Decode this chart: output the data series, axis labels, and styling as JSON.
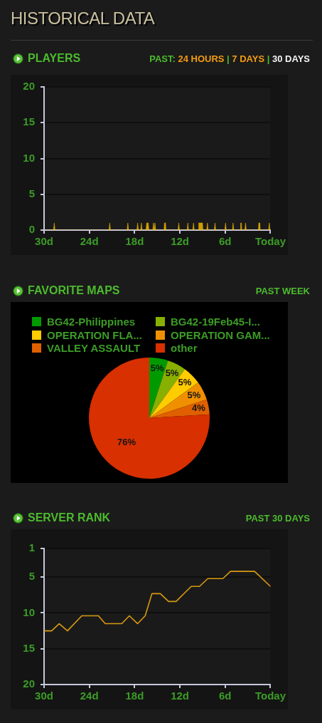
{
  "chart_data": [
    {
      "type": "other",
      "title": "HISTORICAL DATA"
    },
    {
      "type": "area",
      "title": "PLAYERS",
      "subtitle": "PAST: 24 HOURS | 7 DAYS | 30 DAYS",
      "x": [
        -30,
        -28.75,
        -28.65,
        -28.55,
        -21.4,
        -21.3,
        -21.2,
        -19,
        -18.9,
        -18.8,
        -17.7,
        -17.6,
        -17.5,
        -17.2,
        -17.1,
        -17,
        -16.5,
        -16.4,
        -16.2,
        -16.1,
        -15.6,
        -15.5,
        -15.4,
        -15.3,
        -15.2,
        -14.1,
        -14.05,
        -13.9,
        -13.85,
        -12.25,
        -12.15,
        -12.05,
        -11.05,
        -10.95,
        -10.85,
        -10.3,
        -10.2,
        -10.1,
        -9.55,
        -9.5,
        -9,
        -8.95,
        -8.45,
        -8.35,
        -8.25,
        -7.45,
        -7.35,
        -7.25,
        -6.05,
        -5.95,
        -5.85,
        -5.05,
        -4.95,
        -4.85,
        -4,
        -3.95,
        -3.85,
        -3.8,
        -3.4,
        -3.3,
        -3.2,
        -1.6,
        -1.55,
        -1.4,
        -1.35,
        -0.25,
        -0.15,
        -0.05,
        0
      ],
      "values": [
        0,
        0,
        1,
        0,
        0,
        1,
        0,
        0,
        1,
        0,
        0,
        1,
        0,
        0,
        1,
        0,
        0,
        1,
        1,
        0,
        0,
        1,
        0,
        1,
        0,
        0,
        1,
        1,
        0,
        0,
        1,
        0,
        0,
        1,
        0,
        0,
        1,
        0,
        0,
        1,
        1,
        0,
        0,
        1,
        0,
        0,
        1,
        0,
        0,
        1,
        0,
        0,
        1,
        0,
        0,
        1,
        1,
        0,
        0,
        1,
        0,
        0,
        1,
        1,
        0,
        0,
        1,
        0,
        0
      ],
      "color": "#f0b400",
      "xlim": [
        -30,
        0
      ],
      "xticks": [
        {
          "value": -30,
          "label": "30d"
        },
        {
          "value": -24,
          "label": "24d"
        },
        {
          "value": -18,
          "label": "18d"
        },
        {
          "value": -12,
          "label": "12d"
        },
        {
          "value": -6,
          "label": "6d"
        },
        {
          "value": 0,
          "label": "Today"
        }
      ],
      "ylim": [
        0,
        20
      ],
      "yticks": [
        0,
        5,
        10,
        15,
        20
      ],
      "grid": "y",
      "marker": "none"
    },
    {
      "type": "pie",
      "title": "FAVORITE MAPS",
      "subtitle": "PAST WEEK",
      "categories": [
        "BG42-Philippines",
        "BG42-19Feb45-I...",
        "OPERATION FLA...",
        "OPERATION GAM...",
        "VALLEY ASSAULT",
        "other"
      ],
      "values": [
        5,
        5,
        5,
        5,
        4,
        76
      ],
      "colors": [
        "#009a00",
        "#88b000",
        "#ffcc00",
        "#f09000",
        "#e06000",
        "#d83000"
      ],
      "value_labels": [
        "5%",
        "5%",
        "5%",
        "5%",
        "4%",
        "76%"
      ],
      "legend": "top"
    },
    {
      "type": "line",
      "title": "SERVER RANK",
      "subtitle": "PAST 30 DAYS",
      "x": [
        -30,
        -29,
        -28,
        -26.9,
        -25,
        -22.8,
        -21.9,
        -19.7,
        -18.7,
        -17.6,
        -16.6,
        -15.7,
        -14.6,
        -13.5,
        -12.5,
        -10.5,
        -9.4,
        -8.3,
        -6.3,
        -5.3,
        -2.1,
        0
      ],
      "values": [
        12.5,
        12.5,
        11.5,
        12.5,
        10.4,
        10.4,
        11.5,
        11.5,
        10.4,
        11.5,
        10.4,
        7.3,
        7.3,
        8.4,
        8.4,
        6.3,
        6.3,
        5.2,
        5.2,
        4.2,
        4.2,
        6.3
      ],
      "color": "#d89a10",
      "xlim": [
        -30,
        0
      ],
      "xticks": [
        {
          "value": -30,
          "label": "30d"
        },
        {
          "value": -24,
          "label": "24d"
        },
        {
          "value": -18,
          "label": "18d"
        },
        {
          "value": -12,
          "label": "12d"
        },
        {
          "value": -6,
          "label": "6d"
        },
        {
          "value": 0,
          "label": "Today"
        }
      ],
      "ylim": [
        20,
        1
      ],
      "yticks": [
        1,
        5,
        10,
        15,
        20
      ],
      "grid": "y",
      "marker": "none"
    }
  ]
}
